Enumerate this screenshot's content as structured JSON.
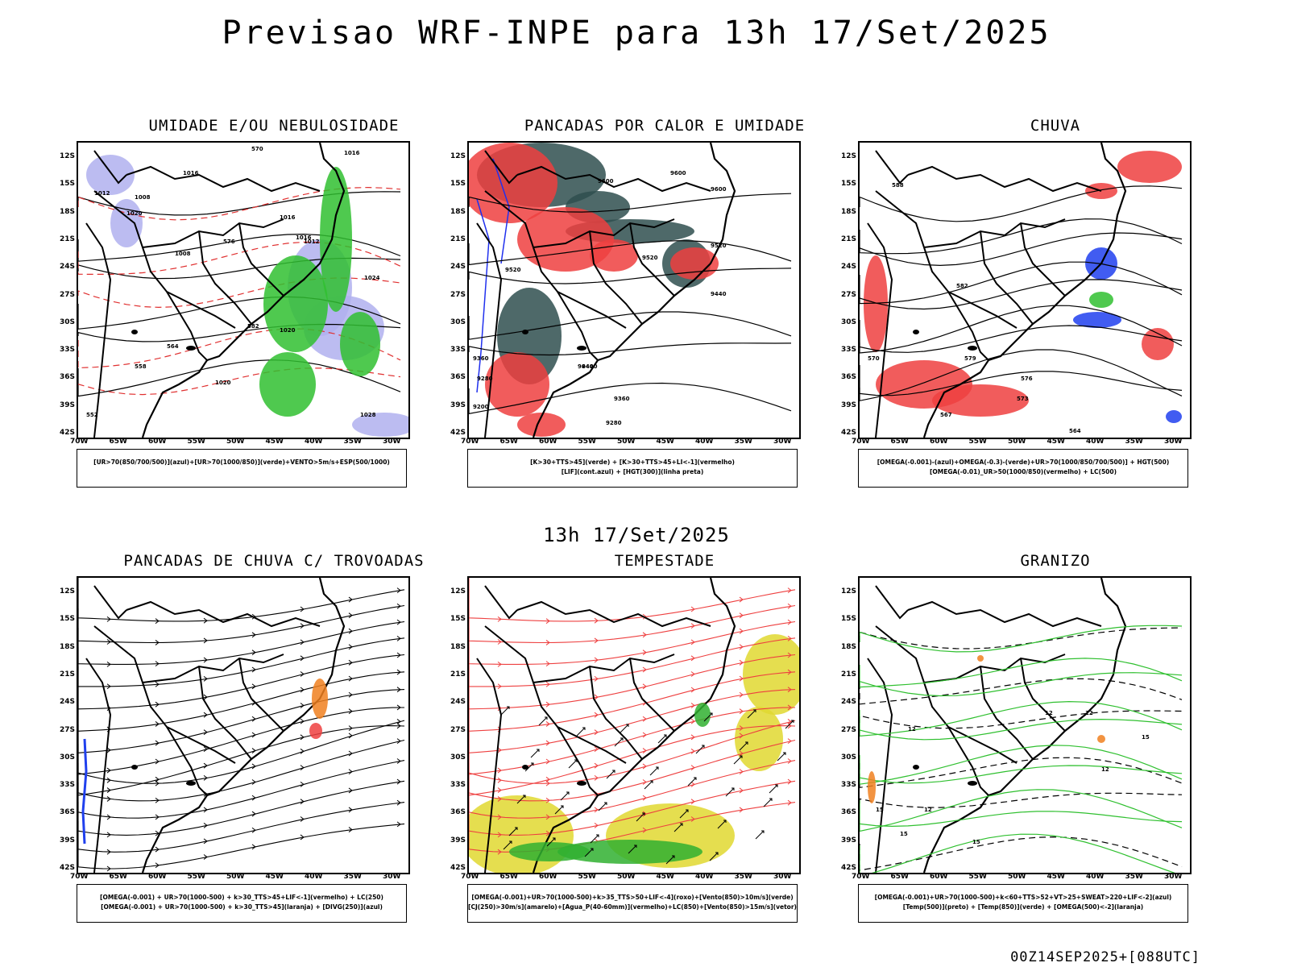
{
  "title": "Previsao WRF-INPE  para 13h 17/Set/2025",
  "mid_time": "13h 17/Set/2025",
  "footer": "00Z14SEP2025+[088UTC]",
  "lat_labels": [
    "12S",
    "15S",
    "18S",
    "21S",
    "24S",
    "27S",
    "30S",
    "33S",
    "36S",
    "39S",
    "42S"
  ],
  "lon_labels": [
    "70W",
    "65W",
    "60W",
    "55W",
    "50W",
    "45W",
    "40W",
    "35W",
    "30W"
  ],
  "panels": [
    {
      "title": "UMIDADE E/OU NEBULOSIDADE",
      "legend": [
        "[UR>70(850/700/500)](azul)+[UR>70(1000/850)](verde)+VENTO>5m/s+ESP(500/1000)"
      ],
      "contour_labels": [
        "1016",
        "1008",
        "1012",
        "1020",
        "1016",
        "1016",
        "1012",
        "1008",
        "1016",
        "1024",
        "1020",
        "1020",
        "1028",
        "570",
        "576",
        "582",
        "564",
        "558",
        "552"
      ]
    },
    {
      "title": "PANCADAS POR CALOR E UMIDADE",
      "legend": [
        "[K>30+TTS>45](verde) + [K>30+TTS>45+LI<-1](vermelho)",
        "[LIF](cont.azul) + [HGT(300)](linha preta)"
      ],
      "contour_labels": [
        "9600",
        "9600",
        "9600",
        "9520",
        "9520",
        "9520",
        "9440",
        "9440",
        "9360",
        "9280",
        "9200",
        "9280",
        "9360",
        "9440"
      ]
    },
    {
      "title": "CHUVA",
      "legend": [
        "[OMEGA(-0.001)-(azul)+OMEGA(-0.3)-(verde)+UR>70(1000/850/700/500)] + HGT(500)",
        "[OMEGA(-0.01)_UR>50(1000/850)(vermelho) + LC(500)"
      ],
      "contour_labels": [
        "588",
        "582",
        "579",
        "576",
        "573",
        "570",
        "567",
        "564"
      ]
    },
    {
      "title": "PANCADAS DE CHUVA C/ TROVOADAS",
      "legend": [
        "[OMEGA(-0.001) + UR>70(1000-500) + k>30_TTS>45+LIF<-1](vermelho) + LC(250)",
        "[OMEGA(-0.001) + UR>70(1000-500) + k>30_TTS>45](laranja) + [DIVG(250)](azul)"
      ],
      "contour_labels": []
    },
    {
      "title": "TEMPESTADE",
      "legend": [
        "[OMEGA(-0.001)+UR>70(1000-500)+k>35_TTS>50+LIF<-4](roxo)+[Vento(850)>10m/s](verde)",
        "[CJ(250)>30m/s](amarelo)+[Agua_P(40-60mm)](vermelho)+LC(850)+[Vento(850)>15m/s](vetor)"
      ],
      "contour_labels": []
    },
    {
      "title": "GRANIZO",
      "legend": [
        "[OMEGA(-0.001)+UR>70(1000-500)+k<60+TTS>52+VT>25+SWEAT>220+LIF<-2](azul)",
        "[Temp(500)](preto) + [Temp(850)](verde) + [OMEGA(500)<-2](laranja)"
      ],
      "contour_labels": [
        "12",
        "12",
        "15",
        "15",
        "12",
        "15",
        "12",
        "12",
        "15"
      ]
    }
  ]
}
